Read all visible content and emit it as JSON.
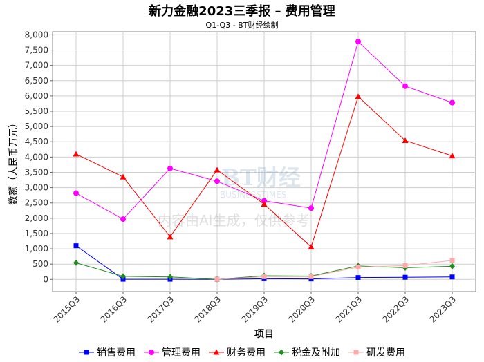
{
  "chart_data": {
    "type": "line",
    "title": "新力金融2023三季报 – 费用管理",
    "subtitle": "Q1-Q3 - BT财经绘制",
    "xlabel": "项目",
    "ylabel": "数额（人民币万元）",
    "categories": [
      "2015Q3",
      "2016Q3",
      "2017Q3",
      "2018Q3",
      "2019Q3",
      "2020Q3",
      "2021Q3",
      "2022Q3",
      "2023Q3"
    ],
    "ylim": [
      -400,
      8100
    ],
    "yticks": [
      0,
      500,
      1000,
      1500,
      2000,
      2500,
      3000,
      3500,
      4000,
      4500,
      5000,
      5500,
      6000,
      6500,
      7000,
      7500,
      8000
    ],
    "ytick_labels": [
      "0",
      "500",
      "1,000",
      "1,500",
      "2,000",
      "2,500",
      "3,000",
      "3,500",
      "4,000",
      "4,500",
      "5,000",
      "5,500",
      "6,000",
      "6,500",
      "7,000",
      "7,500",
      "8,000"
    ],
    "grid": true,
    "legend_position": "bottom",
    "series": [
      {
        "name": "销售费用",
        "color": "#0000ff",
        "marker": "square",
        "values": [
          1100,
          5,
          5,
          0,
          20,
          15,
          60,
          70,
          80
        ]
      },
      {
        "name": "管理费用",
        "color": "#ff00ff",
        "marker": "circle",
        "values": [
          2820,
          1970,
          3630,
          3210,
          2570,
          2330,
          7780,
          6320,
          5780
        ]
      },
      {
        "name": "财务费用",
        "color": "#ff0000",
        "marker": "triangle",
        "values": [
          4100,
          3350,
          1390,
          3580,
          2460,
          1060,
          5980,
          4540,
          4040
        ]
      },
      {
        "name": "税金及附加",
        "color": "#228b22",
        "marker": "diamond",
        "values": [
          540,
          100,
          80,
          0,
          120,
          110,
          440,
          380,
          430
        ]
      },
      {
        "name": "研发费用",
        "color": "#ffaaaa",
        "marker": "square",
        "values": [
          null,
          null,
          null,
          0,
          90,
          90,
          400,
          450,
          620
        ]
      }
    ]
  },
  "watermark": {
    "brand": "BT财经",
    "brand_en": "BUSINESSTIMES",
    "notice": "内容由AI生成，仅供参考"
  }
}
